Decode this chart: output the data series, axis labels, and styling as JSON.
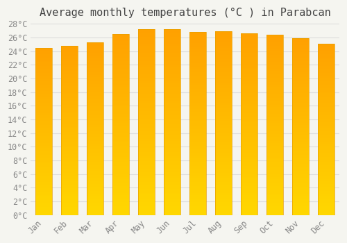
{
  "title": "Average monthly temperatures (°C ) in Parabcan",
  "months": [
    "Jan",
    "Feb",
    "Mar",
    "Apr",
    "May",
    "Jun",
    "Jul",
    "Aug",
    "Sep",
    "Oct",
    "Nov",
    "Dec"
  ],
  "temperatures": [
    24.5,
    24.8,
    25.3,
    26.5,
    27.2,
    27.2,
    26.8,
    26.9,
    26.6,
    26.4,
    25.9,
    25.1
  ],
  "ylim": [
    0,
    28
  ],
  "yticks": [
    0,
    2,
    4,
    6,
    8,
    10,
    12,
    14,
    16,
    18,
    20,
    22,
    24,
    26,
    28
  ],
  "bar_color_top": "#FFA500",
  "bar_color_bottom": "#FFD700",
  "bar_edge_color": "#E8A000",
  "background_color": "#F5F5F0",
  "grid_color": "#DDDDDD",
  "title_fontsize": 11,
  "tick_fontsize": 8.5,
  "font_family": "monospace"
}
